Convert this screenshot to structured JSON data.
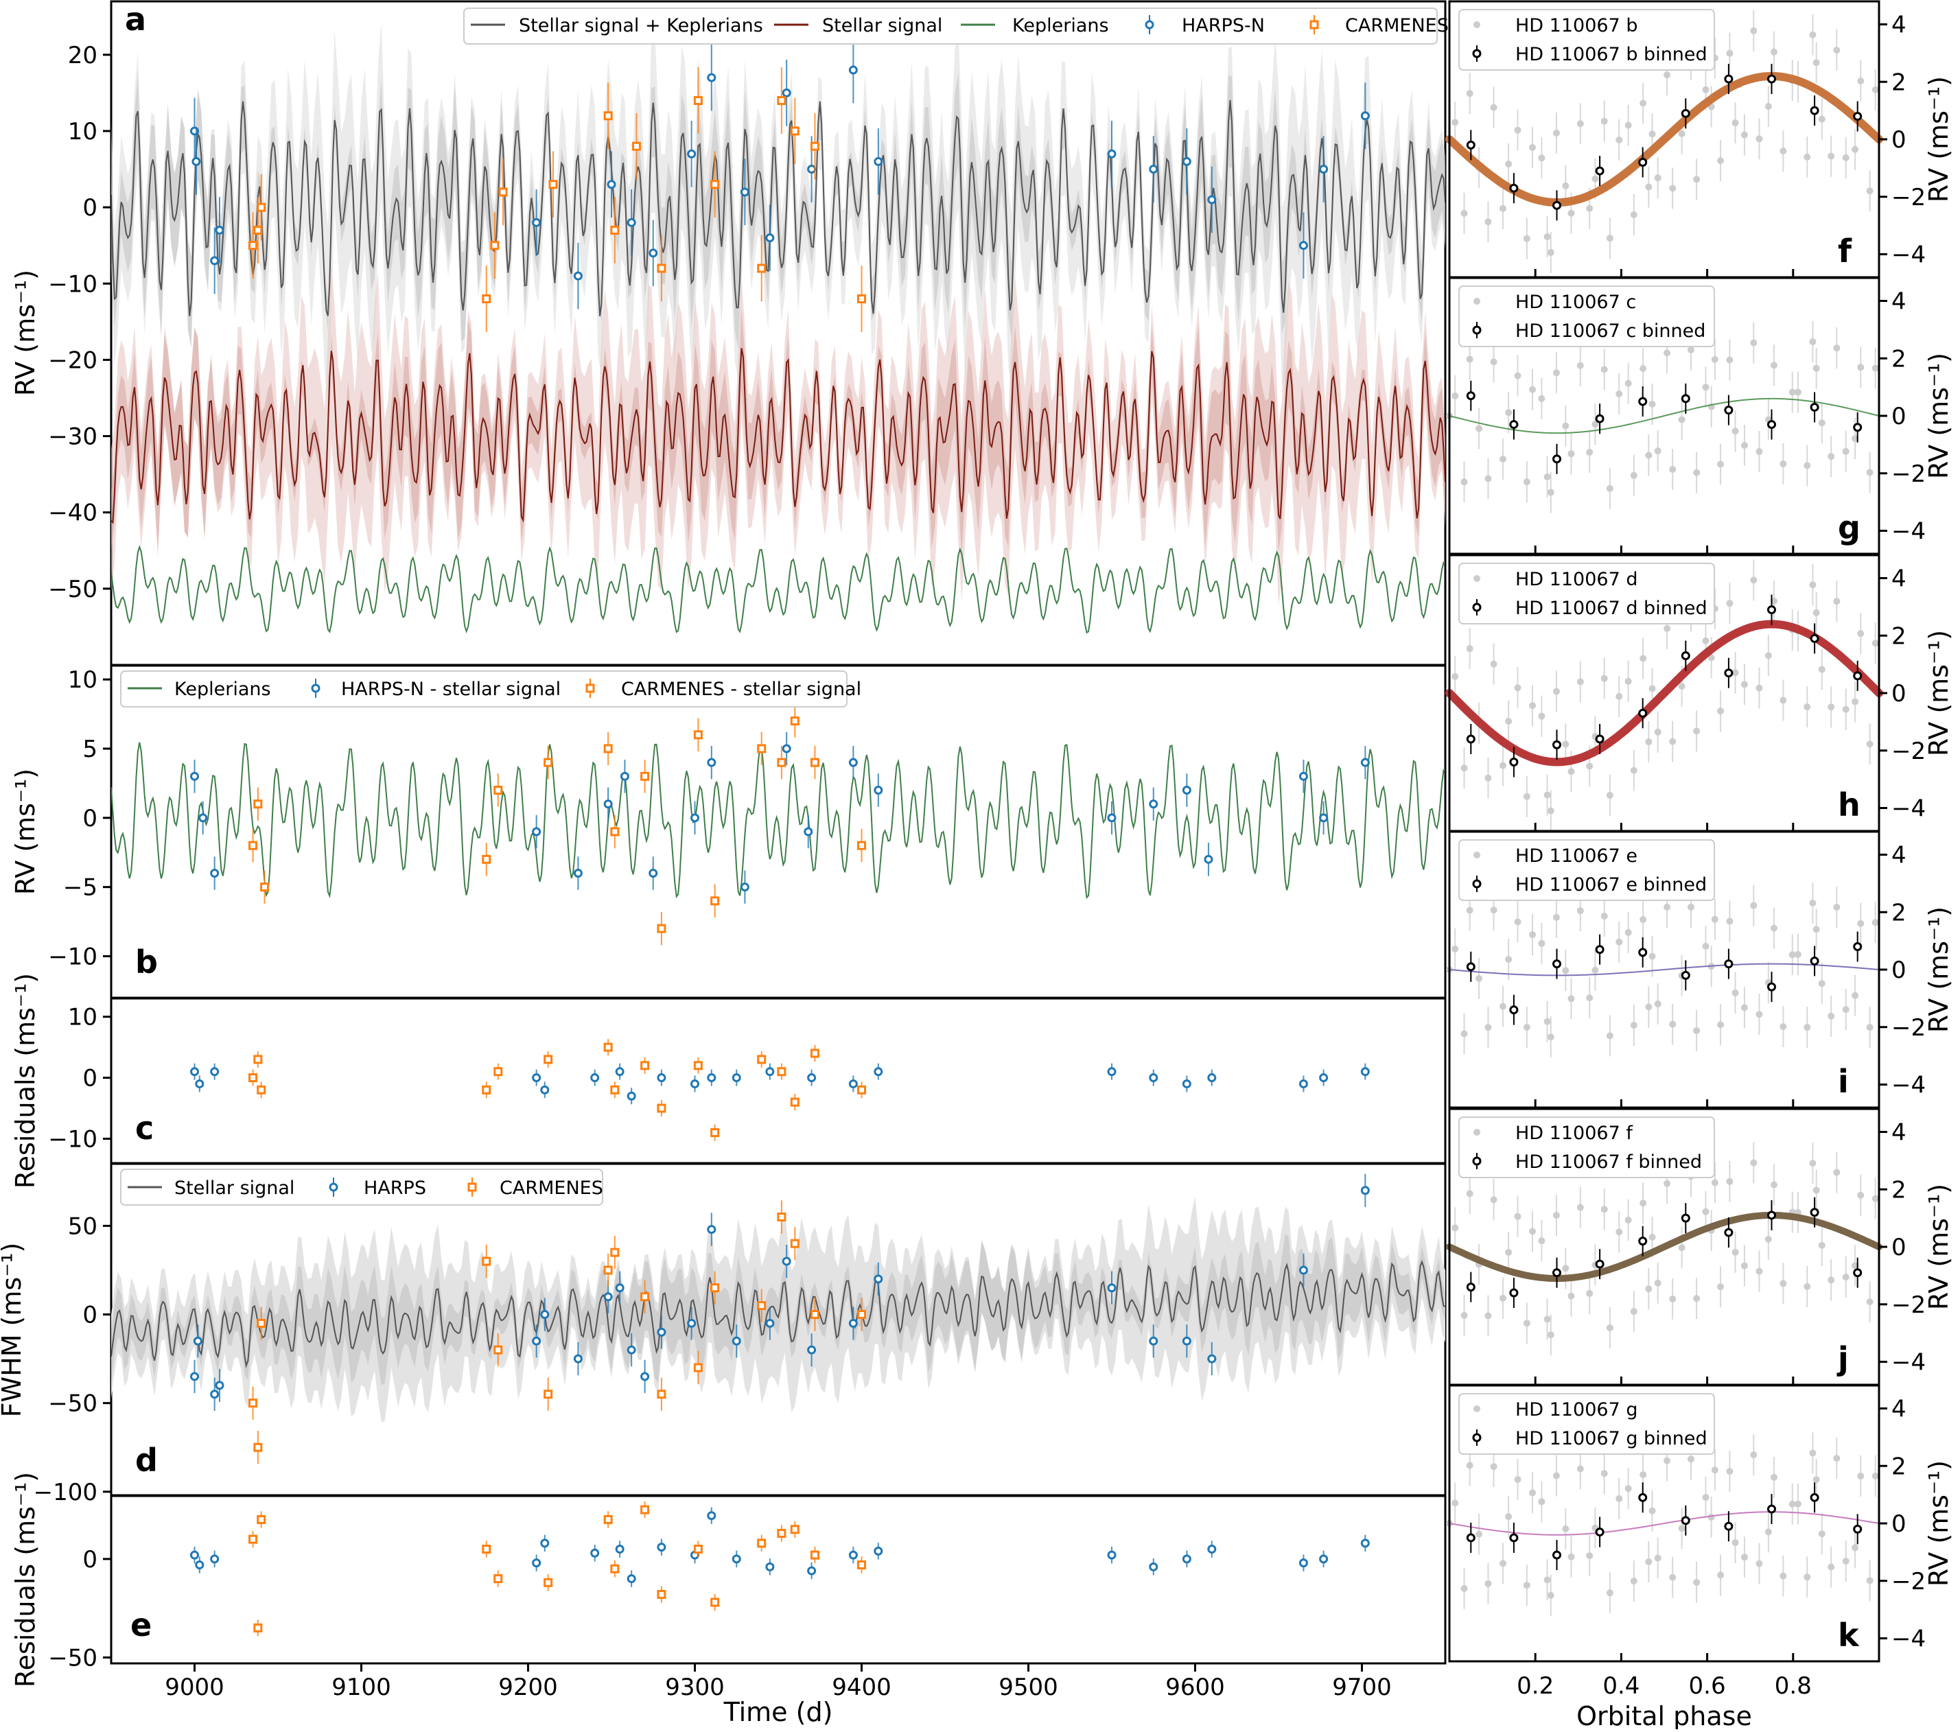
{
  "left_panels": {
    "a": {
      "letter": "a",
      "ylabel": "RV (ms⁻¹)",
      "yticks": [
        "20",
        "10",
        "0",
        "−10",
        "−20",
        "−30",
        "−40",
        "−50"
      ],
      "legend": [
        "Stellar signal + Keplerians",
        "Stellar signal",
        "Keplerians",
        "HARPS-N",
        "CARMENES"
      ]
    },
    "b": {
      "letter": "b",
      "ylabel": "RV (ms⁻¹)",
      "yticks": [
        "10",
        "5",
        "0",
        "−5",
        "−10"
      ],
      "legend": [
        "Keplerians",
        "HARPS-N - stellar signal",
        "CARMENES - stellar signal"
      ]
    },
    "c": {
      "letter": "c",
      "ylabel": "Residuals (ms⁻¹)",
      "yticks": [
        "10",
        "0",
        "−10"
      ]
    },
    "d": {
      "letter": "d",
      "ylabel": "FWHM (ms⁻¹)",
      "yticks": [
        "50",
        "0",
        "−50",
        "−100"
      ],
      "legend": [
        "Stellar signal",
        "HARPS",
        "CARMENES"
      ]
    },
    "e": {
      "letter": "e",
      "ylabel": "Residuals (ms⁻¹)",
      "yticks": [
        "0",
        "−50"
      ],
      "xticks": [
        "9000",
        "9100",
        "9200",
        "9300",
        "9400",
        "9500",
        "9600",
        "9700"
      ],
      "xlabel": "Time (d)"
    }
  },
  "right_panels": {
    "yticks": [
      "4",
      "2",
      "0",
      "−2",
      "−4"
    ],
    "ylabel": "RV (ms⁻¹)",
    "xticks": [
      "0.2",
      "0.4",
      "0.6",
      "0.8"
    ],
    "xlabel": "Orbital phase",
    "items": [
      {
        "letter": "f",
        "planet": "HD 110067 b",
        "binned": "HD 110067 b binned",
        "color": "#c8763e"
      },
      {
        "letter": "g",
        "planet": "HD 110067 c",
        "binned": "HD 110067 c binned",
        "color": "#5a9a5a"
      },
      {
        "letter": "h",
        "planet": "HD 110067 d",
        "binned": "HD 110067 d binned",
        "color": "#b8383a"
      },
      {
        "letter": "i",
        "planet": "HD 110067 e",
        "binned": "HD 110067 e binned",
        "color": "#7b73b8"
      },
      {
        "letter": "j",
        "planet": "HD 110067 f",
        "binned": "HD 110067 f binned",
        "color": "#7a6548"
      },
      {
        "letter": "k",
        "planet": "HD 110067 g",
        "binned": "HD 110067 g binned",
        "color": "#c77cbf"
      }
    ]
  },
  "colors": {
    "harps": "#1f77b4",
    "carmenes": "#ff7f0e",
    "stellar": "#7a1c12",
    "kepler": "#3f7f4a",
    "combined": "#555555"
  },
  "chart_data": [
    {
      "type": "line",
      "panel": "a",
      "xlabel": "Time (d)",
      "ylabel": "RV (ms⁻¹)",
      "xlim": [
        8950,
        9750
      ],
      "ylim": [
        -60,
        27
      ],
      "series": [
        {
          "name": "Stellar signal + Keplerians",
          "offset": 0
        },
        {
          "name": "Stellar signal",
          "offset": -30
        },
        {
          "name": "Keplerians",
          "offset": -50
        },
        {
          "name": "HARPS-N",
          "x": [
            9000,
            9001,
            9012,
            9015,
            9205,
            9230,
            9250,
            9262,
            9275,
            9298,
            9310,
            9330,
            9345,
            9355,
            9370,
            9395,
            9410,
            9550,
            9575,
            9595,
            9610,
            9665,
            9677,
            9702
          ],
          "y": [
            10,
            6,
            -7,
            -3,
            -2,
            -9,
            3,
            -2,
            -6,
            7,
            17,
            2,
            -4,
            15,
            5,
            18,
            6,
            7,
            5,
            6,
            1,
            -5,
            5,
            12
          ]
        },
        {
          "name": "CARMENES",
          "x": [
            9035,
            9038,
            9040,
            9175,
            9180,
            9185,
            9215,
            9248,
            9252,
            9265,
            9280,
            9302,
            9312,
            9340,
            9352,
            9360,
            9372,
            9400
          ],
          "y": [
            -5,
            -3,
            0,
            -12,
            -5,
            2,
            3,
            12,
            -3,
            8,
            -8,
            14,
            3,
            -8,
            14,
            10,
            8,
            -12
          ]
        }
      ]
    },
    {
      "type": "line",
      "panel": "b",
      "xlabel": "Time (d)",
      "ylabel": "RV (ms⁻¹)",
      "xlim": [
        8950,
        9750
      ],
      "ylim": [
        -13,
        11
      ],
      "series": [
        {
          "name": "Keplerians"
        },
        {
          "name": "HARPS-N - stellar signal",
          "x": [
            9000,
            9005,
            9012,
            9205,
            9230,
            9248,
            9258,
            9275,
            9300,
            9310,
            9330,
            9355,
            9368,
            9395,
            9410,
            9550,
            9575,
            9595,
            9608,
            9665,
            9677,
            9702
          ],
          "y": [
            3,
            0,
            -4,
            -1,
            -4,
            1,
            3,
            -4,
            0,
            4,
            -5,
            5,
            -1,
            4,
            2,
            0,
            1,
            2,
            -3,
            3,
            0,
            4
          ]
        },
        {
          "name": "CARMENES - stellar signal",
          "x": [
            9035,
            9038,
            9042,
            9175,
            9182,
            9212,
            9248,
            9252,
            9270,
            9280,
            9302,
            9312,
            9340,
            9352,
            9360,
            9372,
            9400
          ],
          "y": [
            -2,
            1,
            -5,
            -3,
            2,
            4,
            5,
            -1,
            3,
            -8,
            6,
            -6,
            5,
            4,
            7,
            4,
            -2
          ]
        }
      ]
    },
    {
      "type": "scatter",
      "panel": "c",
      "xlabel": "Time (d)",
      "ylabel": "Residuals (ms⁻¹)",
      "xlim": [
        8950,
        9750
      ],
      "ylim": [
        -14,
        13
      ],
      "series": [
        {
          "name": "HARPS-N",
          "x": [
            9000,
            9003,
            9012,
            9205,
            9210,
            9240,
            9255,
            9262,
            9280,
            9300,
            9310,
            9325,
            9345,
            9370,
            9395,
            9410,
            9550,
            9575,
            9595,
            9610,
            9665,
            9677,
            9702
          ],
          "y": [
            1,
            -1,
            1,
            0,
            -2,
            0,
            1,
            -3,
            0,
            -1,
            0,
            0,
            1,
            0,
            -1,
            1,
            1,
            0,
            -1,
            0,
            -1,
            0,
            1
          ]
        },
        {
          "name": "CARMENES",
          "x": [
            9035,
            9038,
            9040,
            9175,
            9182,
            9212,
            9248,
            9252,
            9270,
            9280,
            9302,
            9312,
            9340,
            9352,
            9360,
            9372,
            9400
          ],
          "y": [
            0,
            3,
            -2,
            -2,
            1,
            3,
            5,
            -2,
            2,
            -5,
            2,
            -9,
            3,
            1,
            -4,
            4,
            -2
          ]
        }
      ]
    },
    {
      "type": "line",
      "panel": "d",
      "xlabel": "Time (d)",
      "ylabel": "FWHM (ms⁻¹)",
      "xlim": [
        8950,
        9750
      ],
      "ylim": [
        -102,
        85
      ],
      "series": [
        {
          "name": "Stellar signal"
        },
        {
          "name": "HARPS",
          "x": [
            9000,
            9002,
            9012,
            9015,
            9205,
            9210,
            9230,
            9248,
            9255,
            9262,
            9270,
            9280,
            9298,
            9310,
            9325,
            9345,
            9355,
            9370,
            9395,
            9410,
            9550,
            9575,
            9595,
            9610,
            9665,
            9702
          ],
          "y": [
            -35,
            -15,
            -45,
            -40,
            -15,
            0,
            -25,
            10,
            15,
            -20,
            -35,
            -10,
            -5,
            48,
            -15,
            -5,
            30,
            -20,
            -5,
            20,
            15,
            -15,
            -15,
            -25,
            25,
            70
          ]
        },
        {
          "name": "CARMENES",
          "x": [
            9035,
            9038,
            9040,
            9175,
            9182,
            9212,
            9248,
            9252,
            9270,
            9280,
            9302,
            9312,
            9340,
            9352,
            9360,
            9372,
            9400
          ],
          "y": [
            -50,
            -75,
            -5,
            30,
            -20,
            -45,
            25,
            35,
            10,
            -45,
            -30,
            15,
            5,
            55,
            40,
            0,
            0
          ]
        }
      ]
    },
    {
      "type": "scatter",
      "panel": "e",
      "xlabel": "Time (d)",
      "ylabel": "Residuals (ms⁻¹)",
      "xlim": [
        8950,
        9750
      ],
      "ylim": [
        -53,
        32
      ],
      "series": [
        {
          "name": "HARPS",
          "x": [
            9000,
            9003,
            9012,
            9205,
            9210,
            9240,
            9255,
            9262,
            9280,
            9300,
            9310,
            9325,
            9345,
            9370,
            9395,
            9410,
            9550,
            9575,
            9595,
            9610,
            9665,
            9677,
            9702
          ],
          "y": [
            2,
            -3,
            0,
            -2,
            8,
            3,
            5,
            -10,
            6,
            2,
            22,
            0,
            -4,
            -6,
            2,
            4,
            2,
            -4,
            0,
            5,
            -2,
            0,
            8
          ]
        },
        {
          "name": "CARMENES",
          "x": [
            9035,
            9038,
            9040,
            9175,
            9182,
            9212,
            9248,
            9252,
            9270,
            9280,
            9302,
            9312,
            9340,
            9352,
            9360,
            9372,
            9400
          ],
          "y": [
            10,
            -35,
            20,
            5,
            -10,
            -12,
            20,
            -5,
            25,
            -18,
            5,
            -22,
            8,
            13,
            15,
            2,
            -3
          ]
        }
      ]
    },
    {
      "type": "scatter",
      "panel": "f",
      "title": "HD 110067 b",
      "xlabel": "Orbital phase",
      "ylabel": "RV (ms⁻¹)",
      "xlim": [
        0,
        1
      ],
      "ylim": [
        -4.8,
        4.8
      ],
      "amplitude": 2.2,
      "binned": {
        "x": [
          0.05,
          0.15,
          0.25,
          0.35,
          0.45,
          0.55,
          0.65,
          0.75,
          0.85,
          0.95
        ],
        "y": [
          -0.2,
          -1.7,
          -2.3,
          -1.1,
          -0.8,
          0.9,
          2.1,
          2.1,
          1.0,
          0.8
        ]
      }
    },
    {
      "type": "scatter",
      "panel": "g",
      "title": "HD 110067 c",
      "xlabel": "Orbital phase",
      "ylabel": "RV (ms⁻¹)",
      "xlim": [
        0,
        1
      ],
      "ylim": [
        -4.8,
        4.8
      ],
      "amplitude": 0.6,
      "binned": {
        "x": [
          0.05,
          0.15,
          0.25,
          0.35,
          0.45,
          0.55,
          0.65,
          0.75,
          0.85,
          0.95
        ],
        "y": [
          0.7,
          -0.3,
          -1.5,
          -0.1,
          0.5,
          0.6,
          0.2,
          -0.3,
          0.3,
          -0.4
        ]
      }
    },
    {
      "type": "scatter",
      "panel": "h",
      "title": "HD 110067 d",
      "xlabel": "Orbital phase",
      "ylabel": "RV (ms⁻¹)",
      "xlim": [
        0,
        1
      ],
      "ylim": [
        -4.8,
        4.8
      ],
      "amplitude": 2.4,
      "binned": {
        "x": [
          0.05,
          0.15,
          0.25,
          0.35,
          0.45,
          0.55,
          0.65,
          0.75,
          0.85,
          0.95
        ],
        "y": [
          -1.6,
          -2.4,
          -1.8,
          -1.6,
          -0.7,
          1.3,
          0.7,
          2.9,
          1.9,
          0.6
        ]
      }
    },
    {
      "type": "scatter",
      "panel": "i",
      "title": "HD 110067 e",
      "xlabel": "Orbital phase",
      "ylabel": "RV (ms⁻¹)",
      "xlim": [
        0,
        1
      ],
      "ylim": [
        -4.8,
        4.8
      ],
      "amplitude": 0.2,
      "binned": {
        "x": [
          0.05,
          0.15,
          0.25,
          0.35,
          0.45,
          0.55,
          0.65,
          0.75,
          0.85,
          0.95
        ],
        "y": [
          0.1,
          -1.4,
          0.2,
          0.7,
          0.6,
          -0.2,
          0.2,
          -0.6,
          0.3,
          0.8
        ]
      }
    },
    {
      "type": "scatter",
      "panel": "j",
      "title": "HD 110067 f",
      "xlabel": "Orbital phase",
      "ylabel": "RV (ms⁻¹)",
      "xlim": [
        0,
        1
      ],
      "ylim": [
        -4.8,
        4.8
      ],
      "amplitude": 1.1,
      "binned": {
        "x": [
          0.05,
          0.15,
          0.25,
          0.35,
          0.45,
          0.55,
          0.65,
          0.75,
          0.85,
          0.95
        ],
        "y": [
          -1.4,
          -1.6,
          -0.9,
          -0.6,
          0.2,
          1.0,
          0.5,
          1.1,
          1.2,
          -0.9
        ]
      }
    },
    {
      "type": "scatter",
      "panel": "k",
      "title": "HD 110067 g",
      "xlabel": "Orbital phase",
      "ylabel": "RV (ms⁻¹)",
      "xlim": [
        0,
        1
      ],
      "ylim": [
        -4.8,
        4.8
      ],
      "amplitude": 0.4,
      "binned": {
        "x": [
          0.05,
          0.15,
          0.25,
          0.35,
          0.45,
          0.55,
          0.65,
          0.75,
          0.85,
          0.95
        ],
        "y": [
          -0.5,
          -0.5,
          -1.1,
          -0.3,
          0.9,
          0.1,
          -0.1,
          0.5,
          0.9,
          -0.2
        ]
      }
    }
  ]
}
